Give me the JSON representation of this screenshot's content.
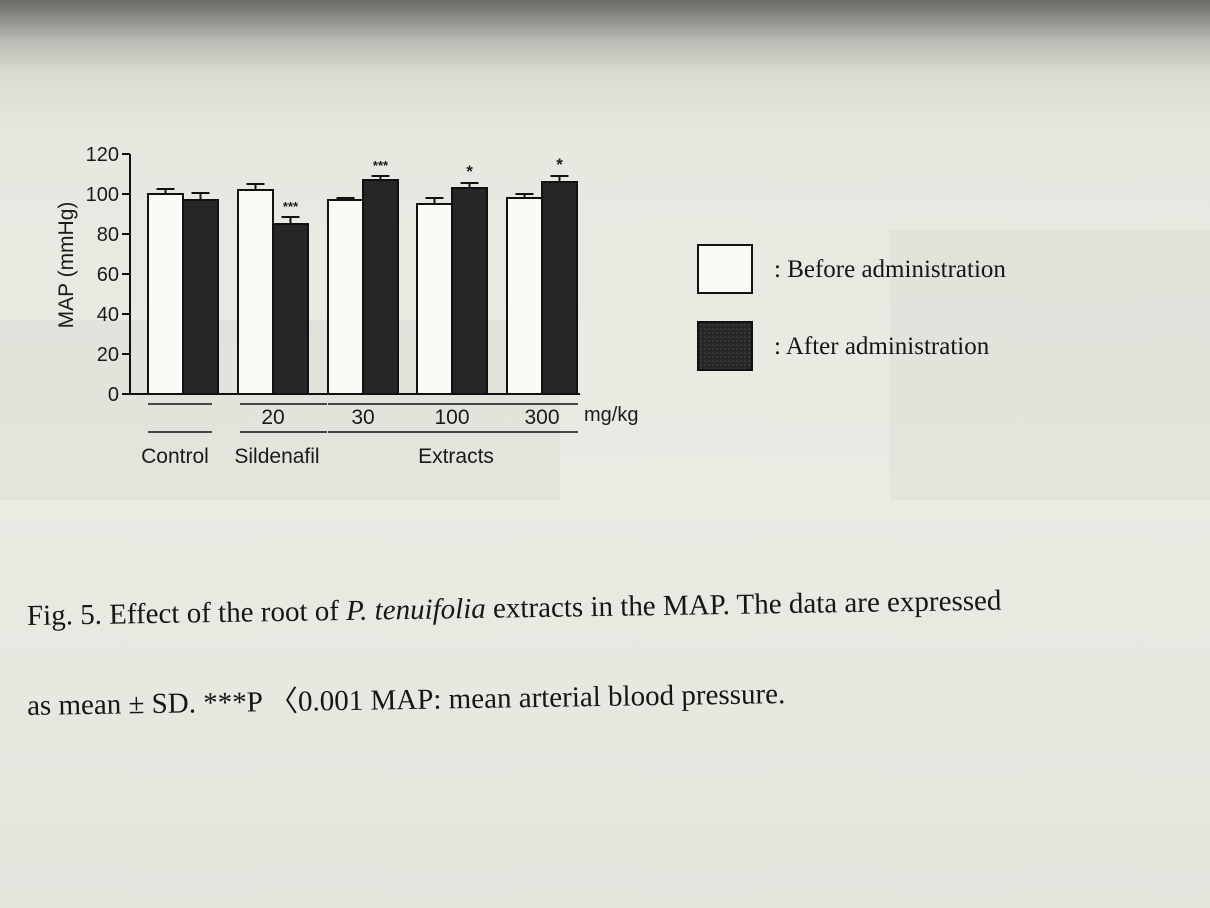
{
  "chart_data": {
    "type": "bar",
    "ylabel": "MAP (mmHg)",
    "ylim": [
      0,
      120
    ],
    "yticks": [
      0,
      20,
      40,
      60,
      80,
      100,
      120
    ],
    "x_unit": "mg/kg",
    "groups": [
      {
        "label": "Control",
        "doses": [
          ""
        ]
      },
      {
        "label": "Sildenafil",
        "doses": [
          "20"
        ]
      },
      {
        "label": "Extracts",
        "doses": [
          "30",
          "100",
          "300"
        ]
      }
    ],
    "categories": [
      "",
      "20",
      "30",
      "100",
      "300"
    ],
    "series": [
      {
        "name": ": Before administration",
        "color": "#fbfbf6",
        "values": [
          100,
          102,
          97,
          95,
          98
        ],
        "errors": [
          2.5,
          3,
          1,
          3,
          2
        ]
      },
      {
        "name": ": After administration",
        "color": "#262626",
        "values": [
          97,
          85,
          107,
          103,
          106
        ],
        "errors": [
          3.5,
          3.5,
          2,
          2.5,
          3
        ]
      }
    ],
    "annotations": [
      {
        "series": 1,
        "index": 1,
        "text": "***"
      },
      {
        "series": 1,
        "index": 2,
        "text": "***"
      },
      {
        "series": 1,
        "index": 3,
        "text": "*"
      },
      {
        "series": 1,
        "index": 4,
        "text": "*"
      }
    ]
  },
  "caption": {
    "line1_prefix": "Fig. 5. Effect of the root of ",
    "line1_italic": "P. tenuifolia",
    "line1_suffix": " extracts in the MAP. The data are expressed",
    "line2": "as mean ± SD. ***P 〈0.001 MAP: mean arterial blood pressure."
  }
}
